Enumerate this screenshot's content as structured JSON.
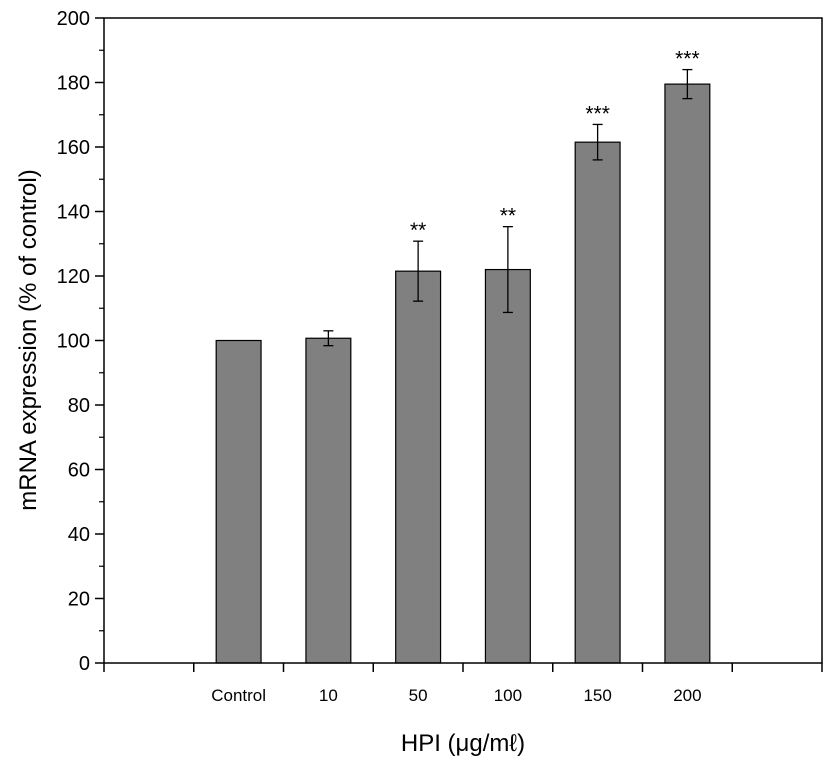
{
  "chart_data": {
    "type": "bar",
    "categories": [
      "Control",
      "10",
      "50",
      "100",
      "150",
      "200"
    ],
    "values": [
      100,
      100.7,
      121.5,
      122,
      161.5,
      179.5
    ],
    "errors": [
      0,
      2.3,
      9.3,
      13.3,
      5.5,
      4.5
    ],
    "significance": [
      "",
      "",
      "**",
      "**",
      "***",
      "***"
    ],
    "title": "",
    "xlabel": "HPI (μg/mℓ)",
    "ylabel": "mRNA expression (% of control)",
    "ylim": [
      0,
      200
    ],
    "yticks": [
      "0",
      "20",
      "40",
      "60",
      "80",
      "100",
      "120",
      "140",
      "160",
      "180",
      "200"
    ],
    "bar_color": "#808080",
    "grid": false
  }
}
